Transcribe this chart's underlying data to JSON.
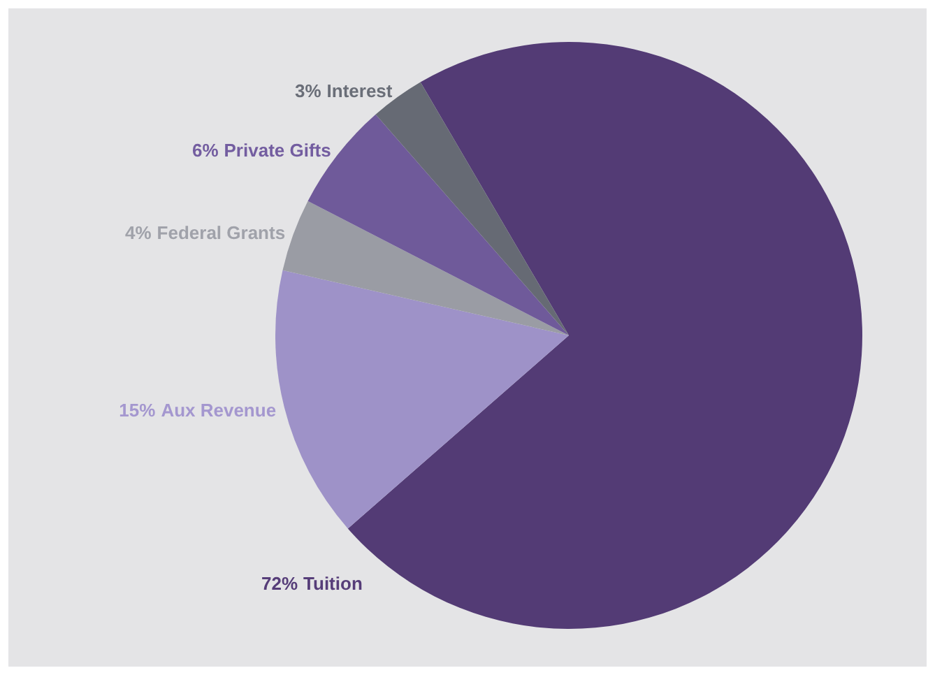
{
  "chart_data": {
    "type": "pie",
    "categories": [
      "Tuition",
      "Aux Revenue",
      "Federal Grants",
      "Private Gifts",
      "Interest"
    ],
    "values": [
      72,
      15,
      4,
      6,
      3
    ],
    "colors": [
      "#533b75",
      "#9e92c8",
      "#9a9ca4",
      "#6f5a9a",
      "#666a74"
    ],
    "value_labels": [
      "72%",
      "15%",
      "4%",
      "6%",
      "3%"
    ]
  }
}
